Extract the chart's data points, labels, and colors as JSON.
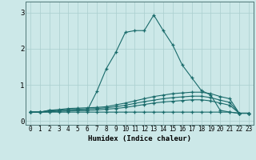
{
  "title": "",
  "xlabel": "Humidex (Indice chaleur)",
  "xlim": [
    -0.5,
    23.5
  ],
  "ylim": [
    -0.1,
    3.3
  ],
  "bg_color": "#cce8e8",
  "grid_color": "#aacece",
  "line_color": "#1a6b6b",
  "xticks": [
    0,
    1,
    2,
    3,
    4,
    5,
    6,
    7,
    8,
    9,
    10,
    11,
    12,
    13,
    14,
    15,
    16,
    17,
    18,
    19,
    20,
    21,
    22,
    23
  ],
  "yticks": [
    0,
    1,
    2,
    3
  ],
  "lines": [
    [
      0.25,
      0.25,
      0.3,
      0.3,
      0.3,
      0.3,
      0.3,
      0.82,
      1.45,
      1.9,
      2.45,
      2.5,
      2.5,
      2.93,
      2.5,
      2.1,
      1.55,
      1.2,
      0.85,
      0.72,
      0.3,
      0.25,
      0.22,
      0.22
    ],
    [
      0.25,
      0.25,
      0.3,
      0.32,
      0.35,
      0.36,
      0.37,
      0.38,
      0.4,
      0.45,
      0.5,
      0.56,
      0.62,
      0.68,
      0.72,
      0.76,
      0.78,
      0.8,
      0.8,
      0.76,
      0.68,
      0.62,
      0.22,
      0.22
    ],
    [
      0.25,
      0.25,
      0.28,
      0.3,
      0.32,
      0.33,
      0.34,
      0.35,
      0.37,
      0.4,
      0.44,
      0.49,
      0.54,
      0.58,
      0.62,
      0.65,
      0.67,
      0.69,
      0.69,
      0.65,
      0.58,
      0.52,
      0.22,
      0.22
    ],
    [
      0.25,
      0.25,
      0.26,
      0.27,
      0.28,
      0.29,
      0.3,
      0.31,
      0.33,
      0.35,
      0.38,
      0.42,
      0.46,
      0.5,
      0.53,
      0.55,
      0.57,
      0.59,
      0.59,
      0.56,
      0.5,
      0.44,
      0.22,
      0.22
    ],
    [
      0.25,
      0.25,
      0.25,
      0.25,
      0.25,
      0.25,
      0.25,
      0.25,
      0.25,
      0.25,
      0.25,
      0.25,
      0.25,
      0.25,
      0.25,
      0.25,
      0.25,
      0.25,
      0.25,
      0.25,
      0.25,
      0.25,
      0.22,
      0.22
    ]
  ]
}
